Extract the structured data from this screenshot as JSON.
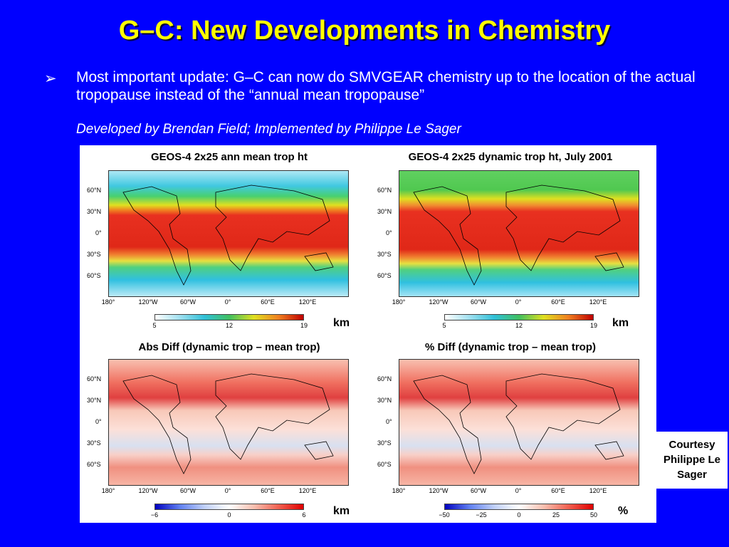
{
  "slide": {
    "title": "G–C: New Developments in Chemistry",
    "bullet_marker": "➢",
    "bullet_text": "Most important update: G–C can now do SMVGEAR chemistry up to the location of the actual tropopause instead of the “annual mean tropopause”",
    "credit": "Developed by Brendan Field; Implemented by Philippe Le Sager",
    "courtesy": "Courtesy Philippe Le Sager"
  },
  "colors": {
    "background": "#0000ff",
    "title": "#ffff00",
    "text": "#ffffff"
  },
  "axes": {
    "lat_labels": [
      "60°N",
      "30°N",
      "0°",
      "30°S",
      "60°S"
    ],
    "lon_labels": [
      "180°",
      "120°W",
      "60°W",
      "0°",
      "60°E",
      "120°E"
    ]
  },
  "panels": [
    {
      "title": "GEOS-4 2x25 ann mean trop ht",
      "colorscale": "rainbow",
      "ticks": [
        "5",
        "12",
        "19"
      ],
      "unit": "km"
    },
    {
      "title": "GEOS-4 2x25 dynamic trop ht, July 2001",
      "colorscale": "rainbow",
      "ticks": [
        "5",
        "12",
        "19"
      ],
      "unit": "km"
    },
    {
      "title": "Abs Diff (dynamic trop – mean trop)",
      "colorscale": "diverging",
      "ticks": [
        "−6",
        "0",
        "6"
      ],
      "unit": "km"
    },
    {
      "title": "% Diff (dynamic trop – mean trop)",
      "colorscale": "diverging",
      "ticks": [
        "−50",
        "−25",
        "0",
        "25",
        "50"
      ],
      "unit": "%"
    }
  ]
}
